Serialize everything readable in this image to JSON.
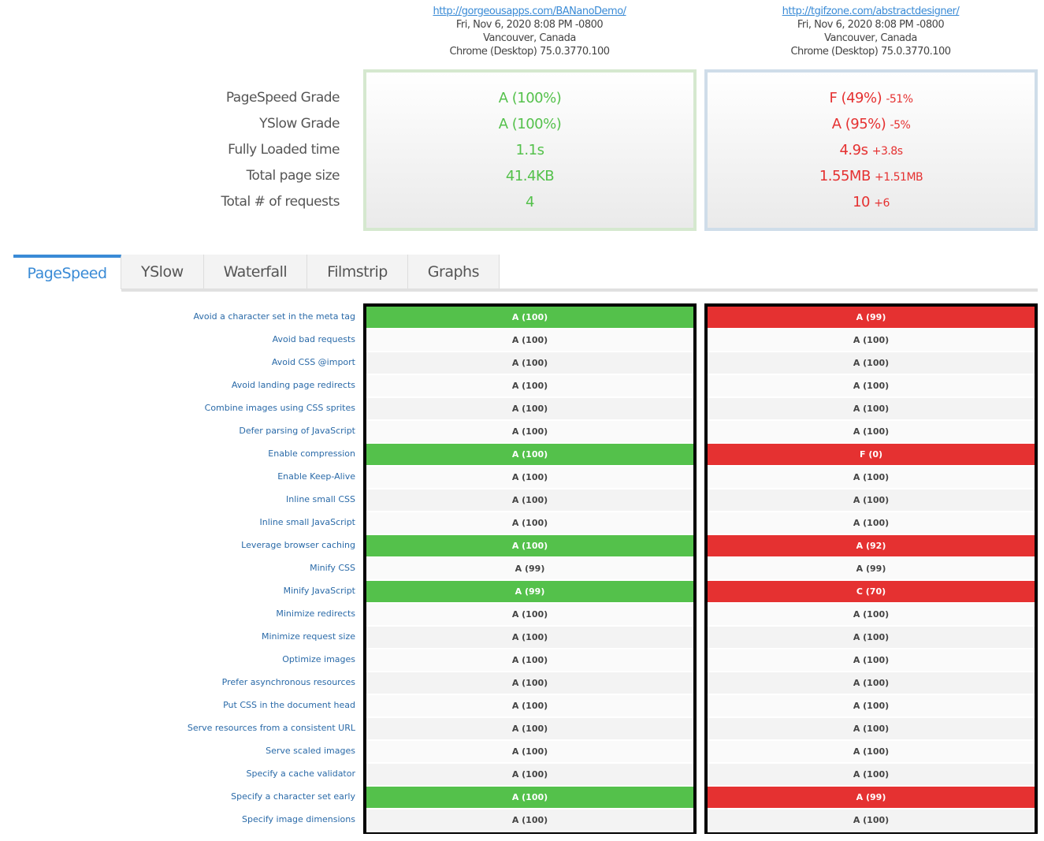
{
  "sites": [
    {
      "url": "http://gorgeousapps.com/BANanoDemo/",
      "date": "Fri, Nov 6, 2020 8:08 PM -0800",
      "location": "Vancouver, Canada",
      "browser": "Chrome (Desktop) 75.0.3770.100",
      "summary": [
        {
          "value": "A (100%)",
          "delta": ""
        },
        {
          "value": "A (100%)",
          "delta": ""
        },
        {
          "value": "1.1s",
          "delta": ""
        },
        {
          "value": "41.4KB",
          "delta": ""
        },
        {
          "value": "4",
          "delta": ""
        }
      ],
      "color": "#54c14b"
    },
    {
      "url": "http://tgifzone.com/abstractdesigner/",
      "date": "Fri, Nov 6, 2020 8:08 PM -0800",
      "location": "Vancouver, Canada",
      "browser": "Chrome (Desktop) 75.0.3770.100",
      "summary": [
        {
          "value": "F (49%)",
          "delta": "-51%"
        },
        {
          "value": "A (95%)",
          "delta": "-5%"
        },
        {
          "value": "4.9s",
          "delta": "+3.8s"
        },
        {
          "value": "1.55MB",
          "delta": "+1.51MB"
        },
        {
          "value": "10",
          "delta": "+6"
        }
      ],
      "color": "#e53131"
    }
  ],
  "summary_labels": [
    "PageSpeed Grade",
    "YSlow Grade",
    "Fully Loaded time",
    "Total page size",
    "Total # of requests"
  ],
  "tabs": [
    "PageSpeed",
    "YSlow",
    "Waterfall",
    "Filmstrip",
    "Graphs"
  ],
  "active_tab": "PageSpeed",
  "rows": [
    {
      "label": "Avoid a character set in the meta tag",
      "a": "A (100)",
      "b": "A (99)",
      "diff": true
    },
    {
      "label": "Avoid bad requests",
      "a": "A (100)",
      "b": "A (100)"
    },
    {
      "label": "Avoid CSS @import",
      "a": "A (100)",
      "b": "A (100)"
    },
    {
      "label": "Avoid landing page redirects",
      "a": "A (100)",
      "b": "A (100)"
    },
    {
      "label": "Combine images using CSS sprites",
      "a": "A (100)",
      "b": "A (100)"
    },
    {
      "label": "Defer parsing of JavaScript",
      "a": "A (100)",
      "b": "A (100)"
    },
    {
      "label": "Enable compression",
      "a": "A (100)",
      "b": "F (0)",
      "diff": true
    },
    {
      "label": "Enable Keep-Alive",
      "a": "A (100)",
      "b": "A (100)"
    },
    {
      "label": "Inline small CSS",
      "a": "A (100)",
      "b": "A (100)"
    },
    {
      "label": "Inline small JavaScript",
      "a": "A (100)",
      "b": "A (100)"
    },
    {
      "label": "Leverage browser caching",
      "a": "A (100)",
      "b": "A (92)",
      "diff": true
    },
    {
      "label": "Minify CSS",
      "a": "A (99)",
      "b": "A (99)"
    },
    {
      "label": "Minify JavaScript",
      "a": "A (99)",
      "b": "C (70)",
      "diff": true
    },
    {
      "label": "Minimize redirects",
      "a": "A (100)",
      "b": "A (100)"
    },
    {
      "label": "Minimize request size",
      "a": "A (100)",
      "b": "A (100)"
    },
    {
      "label": "Optimize images",
      "a": "A (100)",
      "b": "A (100)"
    },
    {
      "label": "Prefer asynchronous resources",
      "a": "A (100)",
      "b": "A (100)"
    },
    {
      "label": "Put CSS in the document head",
      "a": "A (100)",
      "b": "A (100)"
    },
    {
      "label": "Serve resources from a consistent URL",
      "a": "A (100)",
      "b": "A (100)"
    },
    {
      "label": "Serve scaled images",
      "a": "A (100)",
      "b": "A (100)"
    },
    {
      "label": "Specify a cache validator",
      "a": "A (100)",
      "b": "A (100)"
    },
    {
      "label": "Specify a character set early",
      "a": "A (100)",
      "b": "A (99)",
      "diff": true
    },
    {
      "label": "Specify image dimensions",
      "a": "A (100)",
      "b": "A (100)"
    }
  ]
}
